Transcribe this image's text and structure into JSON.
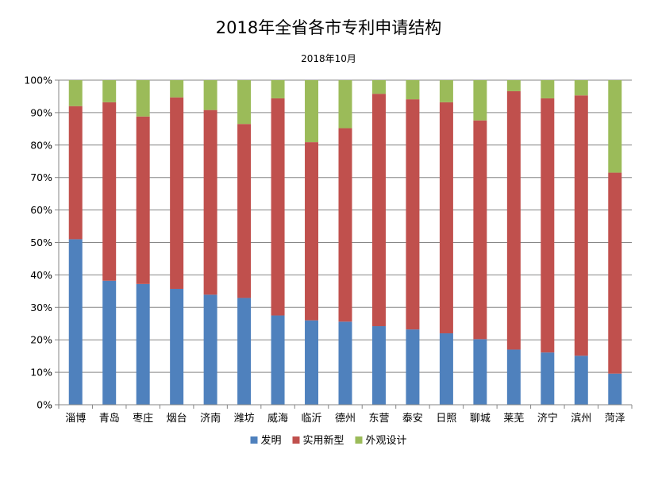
{
  "chart_data": {
    "type": "bar",
    "stacked": true,
    "title": "2018年全省各市专利申请结构",
    "subtitle": "2018年10月",
    "categories": [
      "淄博",
      "青岛",
      "枣庄",
      "烟台",
      "济南",
      "潍坊",
      "威海",
      "临沂",
      "德州",
      "东营",
      "泰安",
      "日照",
      "聊城",
      "莱芜",
      "济宁",
      "滨州",
      "菏泽"
    ],
    "series": [
      {
        "name": "发明",
        "color": "#4f81bd",
        "values": [
          51.0,
          38.2,
          37.2,
          35.7,
          33.9,
          32.9,
          27.5,
          26.0,
          25.6,
          24.2,
          23.2,
          22.0,
          20.2,
          17.0,
          16.1,
          15.1,
          9.6
        ]
      },
      {
        "name": "实用新型",
        "color": "#c0504d",
        "values": [
          41.0,
          55.0,
          51.6,
          59.0,
          56.9,
          53.6,
          66.9,
          54.9,
          59.6,
          71.6,
          70.9,
          71.2,
          67.4,
          79.6,
          78.3,
          80.2,
          61.9
        ]
      },
      {
        "name": "外观设计",
        "color": "#9bbb59",
        "values": [
          8.0,
          6.8,
          11.2,
          5.3,
          9.2,
          13.5,
          5.6,
          19.1,
          14.8,
          4.2,
          5.9,
          6.8,
          12.4,
          3.4,
          5.6,
          4.7,
          28.5
        ]
      }
    ],
    "ylim": [
      0,
      100
    ],
    "yticks": [
      "0%",
      "10%",
      "20%",
      "30%",
      "40%",
      "50%",
      "60%",
      "70%",
      "80%",
      "90%",
      "100%"
    ],
    "grid": true,
    "legend_position": "bottom"
  }
}
